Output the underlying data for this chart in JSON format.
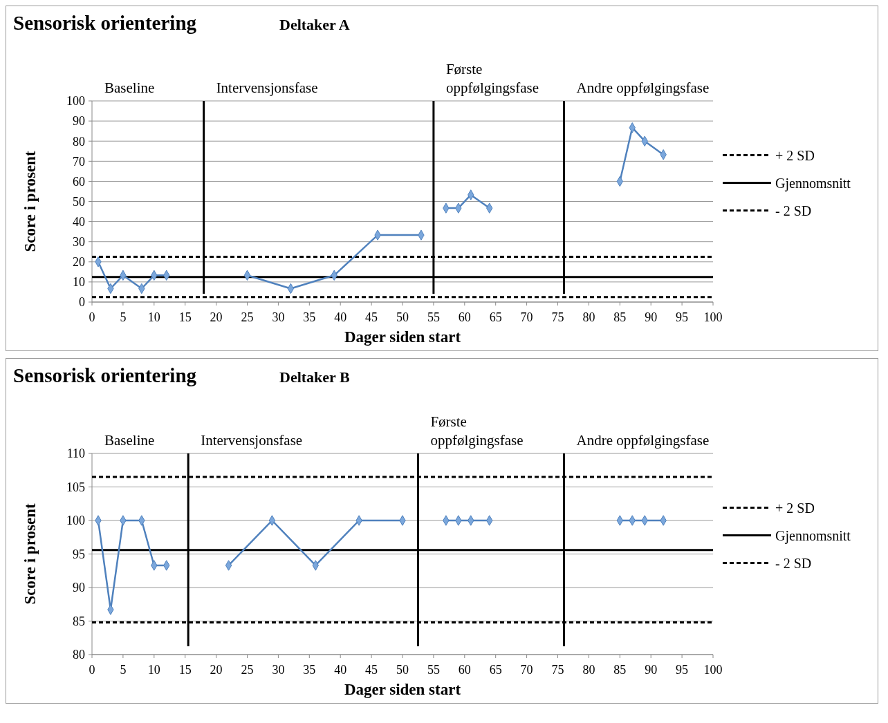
{
  "chart_data": [
    {
      "type": "line",
      "title": "Sensorisk orientering",
      "subtitle": "Deltaker A",
      "xlabel": "Dager siden start",
      "ylabel": "Score i prosent",
      "xlim": [
        0,
        100
      ],
      "xticks": [
        0,
        5,
        10,
        15,
        20,
        25,
        30,
        35,
        40,
        45,
        50,
        55,
        60,
        65,
        70,
        75,
        80,
        85,
        90,
        95,
        100
      ],
      "ylim": [
        0,
        100
      ],
      "yticks": [
        0,
        10,
        20,
        30,
        40,
        50,
        60,
        70,
        80,
        90,
        100
      ],
      "grid": "y",
      "marker": "diamond",
      "legend": "right",
      "series": [
        {
          "color": "#4f81bd",
          "x": [
            1,
            3,
            5,
            8,
            10,
            12
          ],
          "values": [
            20,
            6.7,
            13.3,
            6.7,
            13.3,
            13.3
          ]
        },
        {
          "color": "#4f81bd",
          "x": [
            25,
            32,
            39,
            46,
            53
          ],
          "values": [
            13.3,
            6.7,
            13.3,
            33.3,
            33.3
          ]
        },
        {
          "color": "#4f81bd",
          "x": [
            57,
            59,
            61,
            64
          ],
          "values": [
            46.7,
            46.7,
            53.3,
            46.7
          ]
        },
        {
          "color": "#4f81bd",
          "x": [
            85,
            87,
            89,
            92
          ],
          "values": [
            60,
            86.7,
            80,
            73.3
          ]
        }
      ],
      "ref_lines": [
        {
          "axis": "y",
          "value": 22.5,
          "label": "+ 2 SD",
          "color": "#000000",
          "line_style": "dashed"
        },
        {
          "axis": "y",
          "value": 12.5,
          "label": "Gjennomsnitt",
          "color": "#000000",
          "line_style": "solid"
        },
        {
          "axis": "y",
          "value": 2.5,
          "label": "- 2 SD",
          "color": "#000000",
          "line_style": "dashed"
        },
        {
          "axis": "x",
          "value": 18,
          "color": "#000000",
          "line_style": "solid"
        },
        {
          "axis": "x",
          "value": 55,
          "color": "#000000",
          "line_style": "solid"
        },
        {
          "axis": "x",
          "value": 76,
          "color": "#000000",
          "line_style": "solid"
        }
      ],
      "annotations": [
        "Baseline",
        "Intervensjonsfase",
        "Første oppfølgingsfase",
        "Andre oppfølgingsfase"
      ]
    },
    {
      "type": "line",
      "title": "Sensorisk orientering",
      "subtitle": "Deltaker B",
      "xlabel": "Dager siden start",
      "ylabel": "Score i prosent",
      "xlim": [
        0,
        100
      ],
      "xticks": [
        0,
        5,
        10,
        15,
        20,
        25,
        30,
        35,
        40,
        45,
        50,
        55,
        60,
        65,
        70,
        75,
        80,
        85,
        90,
        95,
        100
      ],
      "ylim": [
        80,
        110
      ],
      "yticks": [
        80,
        85,
        90,
        95,
        100,
        105,
        110
      ],
      "grid": "y",
      "marker": "diamond",
      "legend": "right",
      "series": [
        {
          "color": "#4f81bd",
          "x": [
            1,
            3,
            5,
            8,
            10,
            12
          ],
          "values": [
            100,
            86.7,
            100,
            100,
            93.3,
            93.3
          ]
        },
        {
          "color": "#4f81bd",
          "x": [
            22,
            29,
            36,
            43,
            50
          ],
          "values": [
            93.3,
            100,
            93.3,
            100,
            100
          ]
        },
        {
          "color": "#4f81bd",
          "x": [
            57,
            59,
            61,
            64
          ],
          "values": [
            100,
            100,
            100,
            100
          ]
        },
        {
          "color": "#4f81bd",
          "x": [
            85,
            87,
            89,
            92
          ],
          "values": [
            100,
            100,
            100,
            100
          ]
        }
      ],
      "ref_lines": [
        {
          "axis": "y",
          "value": 106.5,
          "label": "+ 2 SD",
          "color": "#000000",
          "line_style": "dashed"
        },
        {
          "axis": "y",
          "value": 95.6,
          "label": "Gjennomsnitt",
          "color": "#000000",
          "line_style": "solid"
        },
        {
          "axis": "y",
          "value": 84.8,
          "label": "- 2 SD",
          "color": "#000000",
          "line_style": "dashed"
        },
        {
          "axis": "x",
          "value": 15.5,
          "color": "#000000",
          "line_style": "solid"
        },
        {
          "axis": "x",
          "value": 52.5,
          "color": "#000000",
          "line_style": "solid"
        },
        {
          "axis": "x",
          "value": 76,
          "color": "#000000",
          "line_style": "solid"
        }
      ],
      "annotations": [
        "Baseline",
        "Intervensjonsfase",
        "Første oppfølgingsfase",
        "Andre oppfølgingsfase"
      ]
    }
  ]
}
